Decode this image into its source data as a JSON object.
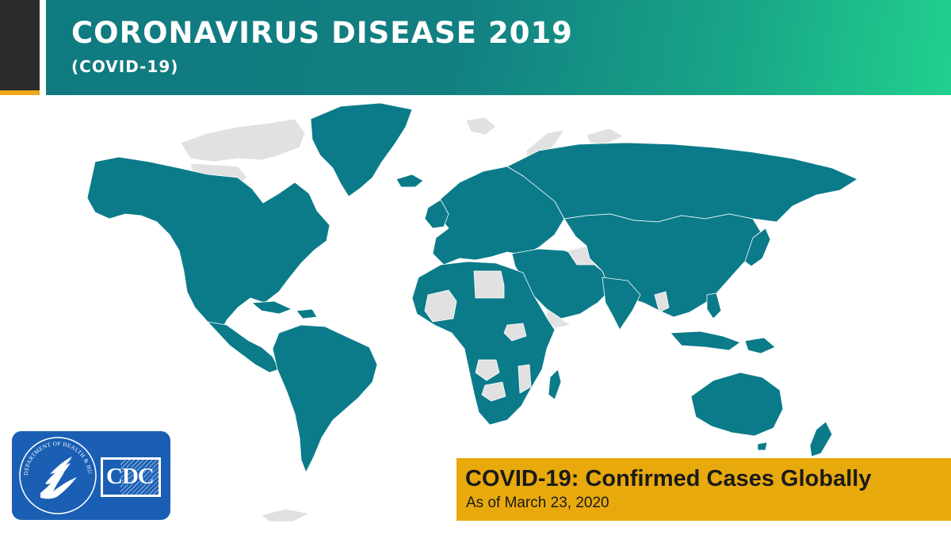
{
  "header": {
    "title": "CORONAVIRUS DISEASE 2019",
    "subtitle": "(COVID-19)"
  },
  "caption": {
    "title": "COVID-19: Confirmed Cases Globally",
    "date": "As of March 23, 2020"
  },
  "logos": {
    "hhs_seal_text": "DEPARTMENT OF HEALTH & HUMAN SERVICES · USA",
    "cdc_text": "CDC"
  },
  "legend_colors": {
    "confirmed_cases": "#0b7b8a",
    "no_confirmed_cases": "#e1e1e1",
    "caption_background": "#e8a90c",
    "logo_background": "#1a5fb4"
  },
  "map": {
    "regions": [
      {
        "name": "North America",
        "status": "confirmed"
      },
      {
        "name": "Greenland",
        "status": "confirmed"
      },
      {
        "name": "Canadian Arctic Islands",
        "status": "none"
      },
      {
        "name": "Central America",
        "status": "confirmed"
      },
      {
        "name": "Caribbean",
        "status": "confirmed"
      },
      {
        "name": "South America",
        "status": "confirmed"
      },
      {
        "name": "Europe",
        "status": "confirmed"
      },
      {
        "name": "Russia",
        "status": "confirmed"
      },
      {
        "name": "Middle East",
        "status": "confirmed"
      },
      {
        "name": "Libya",
        "status": "none"
      },
      {
        "name": "Yemen",
        "status": "none"
      },
      {
        "name": "Turkmenistan",
        "status": "none"
      },
      {
        "name": "Africa",
        "status": "confirmed"
      },
      {
        "name": "Mali",
        "status": "none"
      },
      {
        "name": "South Sudan",
        "status": "none"
      },
      {
        "name": "Angola / Zambia",
        "status": "none"
      },
      {
        "name": "Botswana",
        "status": "none"
      },
      {
        "name": "Malawi / Mozambique",
        "status": "none"
      },
      {
        "name": "Asia",
        "status": "confirmed"
      },
      {
        "name": "Laos",
        "status": "none"
      },
      {
        "name": "Indonesia",
        "status": "confirmed"
      },
      {
        "name": "Papua New Guinea",
        "status": "confirmed"
      },
      {
        "name": "Australia",
        "status": "confirmed"
      },
      {
        "name": "New Zealand",
        "status": "confirmed"
      },
      {
        "name": "Antarctica",
        "status": "none"
      }
    ]
  }
}
